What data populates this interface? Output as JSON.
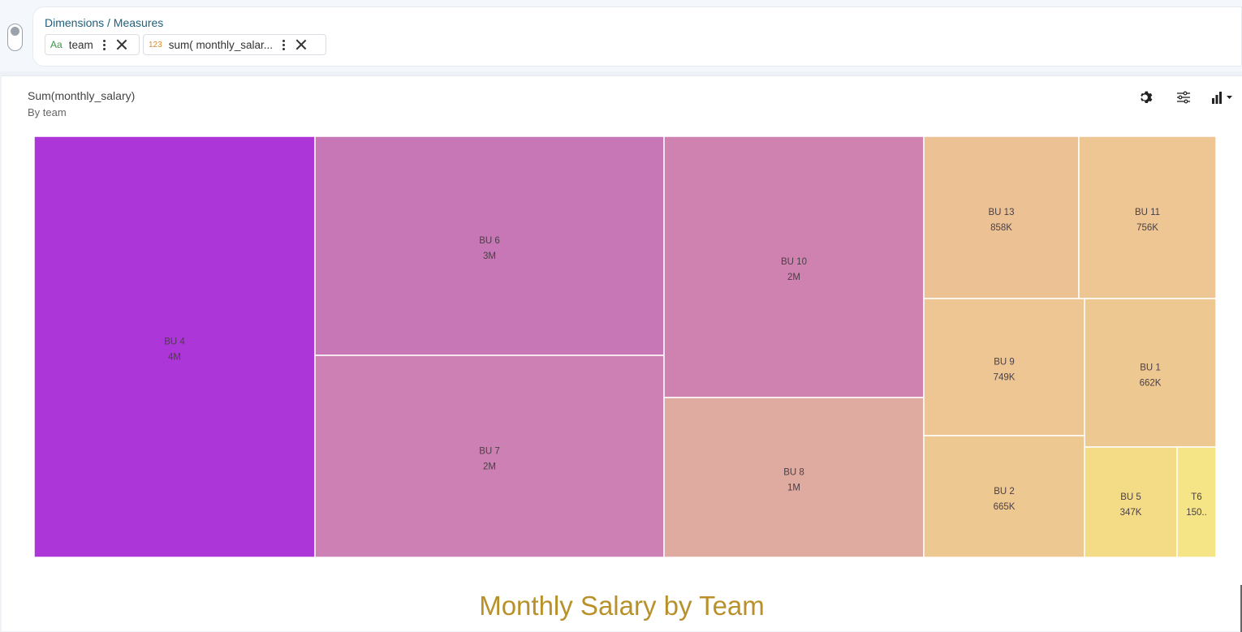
{
  "dimensions_panel": {
    "title": "Dimensions / Measures",
    "pills": [
      {
        "type_label": "Aa",
        "label": "team"
      },
      {
        "type_label": "123",
        "label": "sum( monthly_salar..."
      }
    ]
  },
  "chart_header": {
    "title": "Sum(monthly_salary)",
    "subtitle": "By team"
  },
  "toolbar": {
    "settings_icon": "gear-icon",
    "filter_icon": "sliders-icon",
    "chart_type_icon": "bar-chart-dropdown-icon"
  },
  "footer_title": "Monthly Salary by Team",
  "chart_data": {
    "type": "treemap",
    "title": "Sum(monthly_salary)",
    "subtitle": "By team",
    "color_scale": [
      "#ac36d8",
      "#f6e487"
    ],
    "items": [
      {
        "name": "BU 4",
        "label": "4M",
        "value": 4000000,
        "color": "#ad36d9"
      },
      {
        "name": "BU 6",
        "label": "3M",
        "value": 2750000,
        "color": "#c777b5"
      },
      {
        "name": "BU 7",
        "label": "2M",
        "value": 2350000,
        "color": "#cd80b3"
      },
      {
        "name": "BU 10",
        "label": "2M",
        "value": 2150000,
        "color": "#cf82b0"
      },
      {
        "name": "BU 8",
        "label": "1M",
        "value": 1350000,
        "color": "#dfaaa0"
      },
      {
        "name": "BU 13",
        "label": "858K",
        "value": 858000,
        "color": "#ecc295"
      },
      {
        "name": "BU 11",
        "label": "756K",
        "value": 756000,
        "color": "#edc693"
      },
      {
        "name": "BU 9",
        "label": "749K",
        "value": 749000,
        "color": "#edc693"
      },
      {
        "name": "BU 1",
        "label": "662K",
        "value": 662000,
        "color": "#eec891"
      },
      {
        "name": "BU 2",
        "label": "665K",
        "value": 665000,
        "color": "#eec891"
      },
      {
        "name": "BU 5",
        "label": "347K",
        "value": 347000,
        "color": "#f4dc86"
      },
      {
        "name": "T6",
        "label": "150..",
        "value": 150000,
        "color": "#f6e586"
      }
    ]
  }
}
